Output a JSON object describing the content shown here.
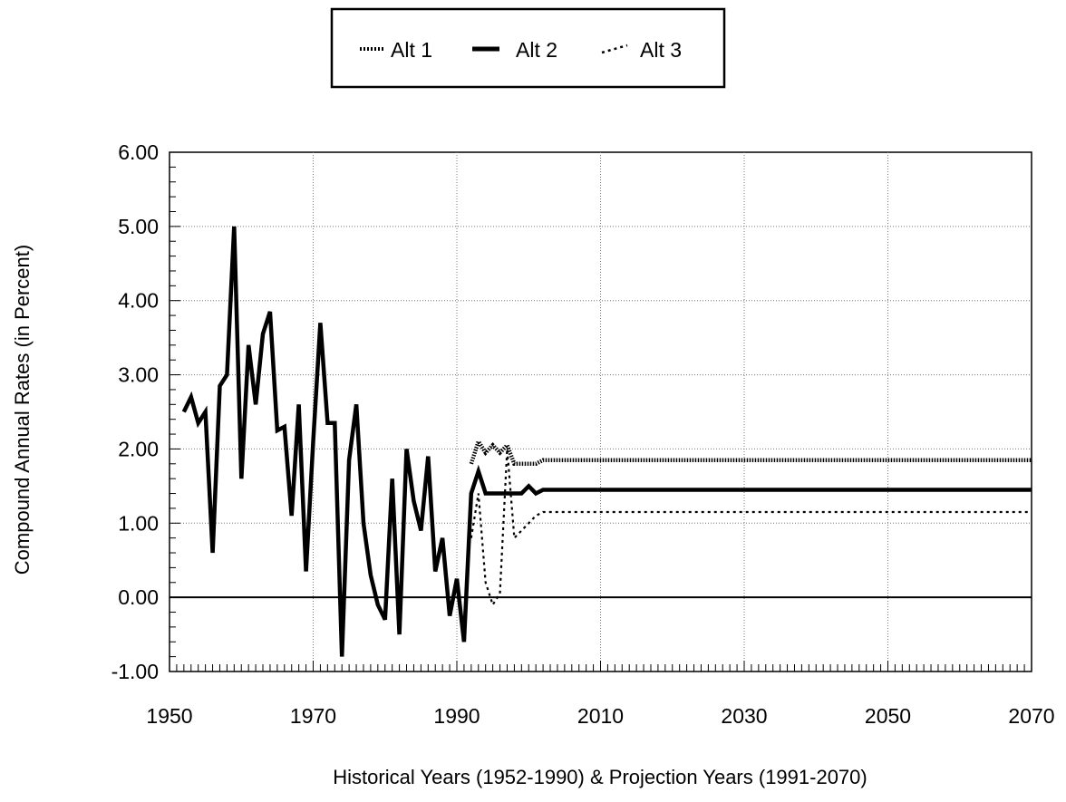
{
  "chart_data": {
    "type": "line",
    "title": "",
    "xlabel": "Historical Years (1952-1990) & Projection Years (1991-2070)",
    "ylabel": "Compound Annual Rates (in Percent)",
    "xlim": [
      1950,
      2070
    ],
    "ylim": [
      -1.0,
      6.0
    ],
    "x_ticks": [
      "1950",
      "1970",
      "1990",
      "2010",
      "2030",
      "2050",
      "2070"
    ],
    "y_ticks": [
      "6.00",
      "5.00",
      "4.00",
      "3.00",
      "2.00",
      "1.00",
      "0.00",
      "-1.00"
    ],
    "grid": true,
    "legend_position": "top-center",
    "series": [
      {
        "name": "Alt 1",
        "style": "dotted",
        "color": "#000000",
        "points": [
          [
            1992,
            1.8
          ],
          [
            1993,
            2.1
          ],
          [
            1994,
            1.95
          ],
          [
            1995,
            2.05
          ],
          [
            1996,
            1.95
          ],
          [
            1997,
            2.05
          ],
          [
            1998,
            1.8
          ],
          [
            1999,
            1.8
          ],
          [
            2000,
            1.8
          ],
          [
            2001,
            1.8
          ],
          [
            2002,
            1.85
          ],
          [
            2070,
            1.85
          ]
        ]
      },
      {
        "name": "Alt 2",
        "style": "solid",
        "color": "#000000",
        "points": [
          [
            1952,
            2.5
          ],
          [
            1953,
            2.7
          ],
          [
            1954,
            2.35
          ],
          [
            1955,
            2.5
          ],
          [
            1956,
            0.6
          ],
          [
            1957,
            2.85
          ],
          [
            1958,
            3.0
          ],
          [
            1959,
            5.0
          ],
          [
            1960,
            1.6
          ],
          [
            1961,
            3.4
          ],
          [
            1962,
            2.6
          ],
          [
            1963,
            3.55
          ],
          [
            1964,
            3.85
          ],
          [
            1965,
            2.25
          ],
          [
            1966,
            2.3
          ],
          [
            1967,
            1.1
          ],
          [
            1968,
            2.6
          ],
          [
            1969,
            0.35
          ],
          [
            1970,
            2.1
          ],
          [
            1971,
            3.7
          ],
          [
            1972,
            2.35
          ],
          [
            1973,
            2.35
          ],
          [
            1974,
            -0.8
          ],
          [
            1975,
            1.85
          ],
          [
            1976,
            2.6
          ],
          [
            1977,
            1.0
          ],
          [
            1978,
            0.3
          ],
          [
            1979,
            -0.1
          ],
          [
            1980,
            -0.3
          ],
          [
            1981,
            1.6
          ],
          [
            1982,
            -0.5
          ],
          [
            1983,
            2.0
          ],
          [
            1984,
            1.3
          ],
          [
            1985,
            0.9
          ],
          [
            1986,
            1.9
          ],
          [
            1987,
            0.35
          ],
          [
            1988,
            0.8
          ],
          [
            1989,
            -0.25
          ],
          [
            1990,
            0.25
          ],
          [
            1991,
            -0.6
          ],
          [
            1992,
            1.4
          ],
          [
            1993,
            1.7
          ],
          [
            1994,
            1.4
          ],
          [
            1995,
            1.4
          ],
          [
            1996,
            1.4
          ],
          [
            1997,
            1.4
          ],
          [
            1998,
            1.4
          ],
          [
            1999,
            1.4
          ],
          [
            2000,
            1.5
          ],
          [
            2001,
            1.4
          ],
          [
            2002,
            1.45
          ],
          [
            2070,
            1.45
          ]
        ]
      },
      {
        "name": "Alt 3",
        "style": "dashed",
        "color": "#000000",
        "points": [
          [
            1992,
            0.8
          ],
          [
            1993,
            1.4
          ],
          [
            1994,
            0.2
          ],
          [
            1995,
            -0.1
          ],
          [
            1996,
            0.05
          ],
          [
            1997,
            2.0
          ],
          [
            1998,
            0.8
          ],
          [
            1999,
            0.9
          ],
          [
            2000,
            1.0
          ],
          [
            2001,
            1.1
          ],
          [
            2002,
            1.15
          ],
          [
            2070,
            1.15
          ]
        ]
      }
    ]
  }
}
